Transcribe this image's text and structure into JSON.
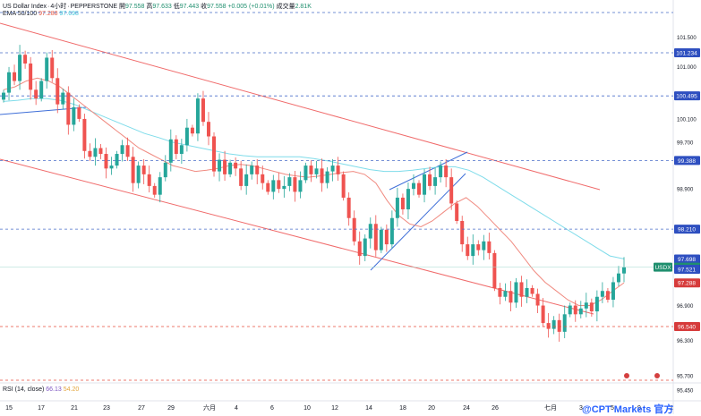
{
  "header": {
    "symbol": "US Dollar Index",
    "interval": "4小时",
    "exchange": "PEPPERSTONE",
    "open_label": "開",
    "open": "97.558",
    "high_label": "高",
    "high": "97.633",
    "low_label": "低",
    "low": "97.443",
    "close_label": "收",
    "close": "97.558",
    "change": "+0.005 (+0.01%)",
    "volume_label": "成交量",
    "volume": "2.81K",
    "ema_label": "EMA 50/100",
    "ema_fast": "97.288",
    "ema_slow": "97.698"
  },
  "rsi": {
    "label": "RSI (14, close)",
    "value1": "66.13",
    "value2": "54.20"
  },
  "watermark": "@CPT Markets 官方",
  "colors": {
    "up": "#26a69a",
    "down": "#ef5350",
    "ema_fast": "#f08a80",
    "ema_slow": "#7fdcea",
    "channel": "#f06b6b",
    "trend": "#3f6fd8",
    "level_line": "#4a6fc9",
    "support_line": "#e74c3c",
    "price_badge_blue": "#2e4fc0",
    "price_badge_green": "#1f8f6e",
    "price_badge_red": "#d63b3b"
  },
  "chart_data": {
    "type": "candlestick",
    "ylim": [
      95.4,
      102.2
    ],
    "x_ticks": [
      "15",
      "17",
      "21",
      "23",
      "27",
      "29",
      "六月",
      "4",
      "6",
      "10",
      "12",
      "14",
      "18",
      "20",
      "24",
      "26",
      "七月",
      "3",
      "5",
      "9",
      "1"
    ],
    "y_ticks": [
      "101.500",
      "101.000",
      "100.100",
      "99.700",
      "98.900",
      "97.900",
      "97.500",
      "96.900",
      "96.300",
      "95.700",
      "95.450"
    ],
    "price_levels": [
      {
        "value": 101.234,
        "label": "101.234",
        "style": "blue"
      },
      {
        "value": 100.495,
        "label": "100.495",
        "style": "blue"
      },
      {
        "value": 99.388,
        "label": "99.388",
        "style": "blue"
      },
      {
        "value": 98.21,
        "label": "98.210",
        "style": "blue"
      },
      {
        "value": 96.54,
        "label": "96.540",
        "style": "red"
      }
    ],
    "current_labels": [
      {
        "value": 97.698,
        "label": "97.698",
        "style": "blue"
      },
      {
        "value": 97.558,
        "label": "97.558",
        "style": "green",
        "tag": "USDX"
      },
      {
        "value": 97.521,
        "label": "97.521",
        "style": "blue"
      },
      {
        "value": 97.288,
        "label": "97.288",
        "style": "red"
      }
    ],
    "closes": [
      100.55,
      100.9,
      100.75,
      101.2,
      101.05,
      100.6,
      100.45,
      100.75,
      101.15,
      100.8,
      100.35,
      100.55,
      100.0,
      100.3,
      100.1,
      99.55,
      99.45,
      99.6,
      99.5,
      99.25,
      99.3,
      99.5,
      99.65,
      99.45,
      99.0,
      99.3,
      99.15,
      98.95,
      98.8,
      99.1,
      99.35,
      99.75,
      99.5,
      99.65,
      99.95,
      99.85,
      100.45,
      100.05,
      99.8,
      99.2,
      99.4,
      99.15,
      99.35,
      99.25,
      98.95,
      99.15,
      99.3,
      99.15,
      99.0,
      98.85,
      99.05,
      98.9,
      98.95,
      99.1,
      98.85,
      99.05,
      99.3,
      99.15,
      99.25,
      99.0,
      99.2,
      99.3,
      99.15,
      98.75,
      98.4,
      98.0,
      97.75,
      98.05,
      98.3,
      97.85,
      98.2,
      97.95,
      98.4,
      98.75,
      98.55,
      98.9,
      99.0,
      98.8,
      99.15,
      98.95,
      99.1,
      99.3,
      99.1,
      98.65,
      98.35,
      97.95,
      97.75,
      97.95,
      97.85,
      98.0,
      97.8,
      97.2,
      97.05,
      97.15,
      96.95,
      97.3,
      97.05,
      97.2,
      97.1,
      96.9,
      96.6,
      96.5,
      96.65,
      96.45,
      96.75,
      96.9,
      96.75,
      96.85,
      96.95,
      96.8,
      97.05,
      97.15,
      97.0,
      97.3,
      97.45,
      97.56
    ],
    "ema_fast": [
      100.6,
      100.65,
      100.75,
      100.8,
      100.75,
      100.65,
      100.5,
      100.35,
      100.2,
      100.05,
      99.9,
      99.75,
      99.6,
      99.5,
      99.4,
      99.3,
      99.25,
      99.2,
      99.22,
      99.25,
      99.3,
      99.32,
      99.3,
      99.25,
      99.2,
      99.15,
      99.12,
      99.1,
      99.12,
      99.15,
      99.18,
      99.2,
      99.15,
      99.0,
      98.7,
      98.45,
      98.3,
      98.25,
      98.35,
      98.5,
      98.65,
      98.75,
      98.6,
      98.4,
      98.2,
      98.0,
      97.75,
      97.5,
      97.3,
      97.15,
      97.0,
      96.9,
      96.9,
      97.0,
      97.15,
      97.29
    ],
    "ema_slow": [
      100.4,
      100.42,
      100.45,
      100.45,
      100.42,
      100.35,
      100.25,
      100.15,
      100.05,
      99.95,
      99.85,
      99.78,
      99.7,
      99.65,
      99.6,
      99.55,
      99.5,
      99.47,
      99.45,
      99.45,
      99.45,
      99.45,
      99.42,
      99.38,
      99.33,
      99.28,
      99.23,
      99.2,
      99.2,
      99.22,
      99.25,
      99.28,
      99.28,
      99.22,
      99.1,
      98.95,
      98.8,
      98.65,
      98.5,
      98.35,
      98.2,
      98.05,
      97.9,
      97.75,
      97.7
    ]
  }
}
